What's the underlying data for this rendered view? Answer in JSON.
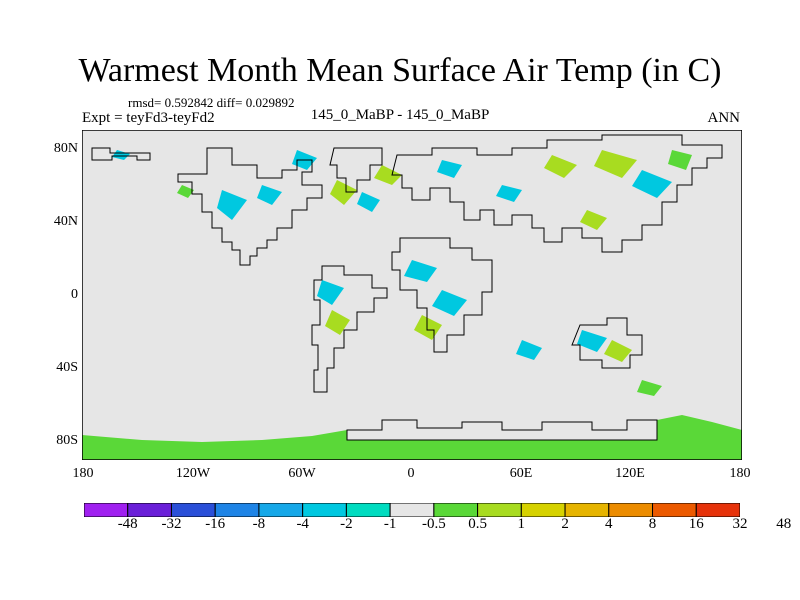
{
  "title": "Warmest Month Mean Surface Air Temp (in C)",
  "stats": "rmsd= 0.592842 diff= 0.029892",
  "expt": "Expt = teyFd3-teyFd2",
  "case_id": "145_0_MaBP - 145_0_MaBP",
  "season": "ANN",
  "lat_labels": [
    "80N",
    "40N",
    "0",
    "40S",
    "80S"
  ],
  "lon_labels": [
    "180",
    "120W",
    "60W",
    "0",
    "60E",
    "120E",
    "180"
  ],
  "colorbar": {
    "colors": [
      "#a020f0",
      "#6a1fd8",
      "#2a4fd8",
      "#1e84e6",
      "#16a8e8",
      "#00c8e0",
      "#00dcc0",
      "#e6e6e6",
      "#5ad838",
      "#a8dc20",
      "#d6d200",
      "#e6b400",
      "#ec8c00",
      "#ec5a00",
      "#e6320a"
    ],
    "labels": [
      "-48",
      "-32",
      "-16",
      "-8",
      "-4",
      "-2",
      "-1",
      "-0.5",
      "0.5",
      "1",
      "2",
      "4",
      "8",
      "16",
      "32",
      "48"
    ]
  },
  "map_colors": {
    "background": "#e6e6e6",
    "neg_small": "#00c8e0",
    "pos_small": "#5ad838",
    "pos_mid": "#a8dc20",
    "antarctica": "#5ad838"
  }
}
